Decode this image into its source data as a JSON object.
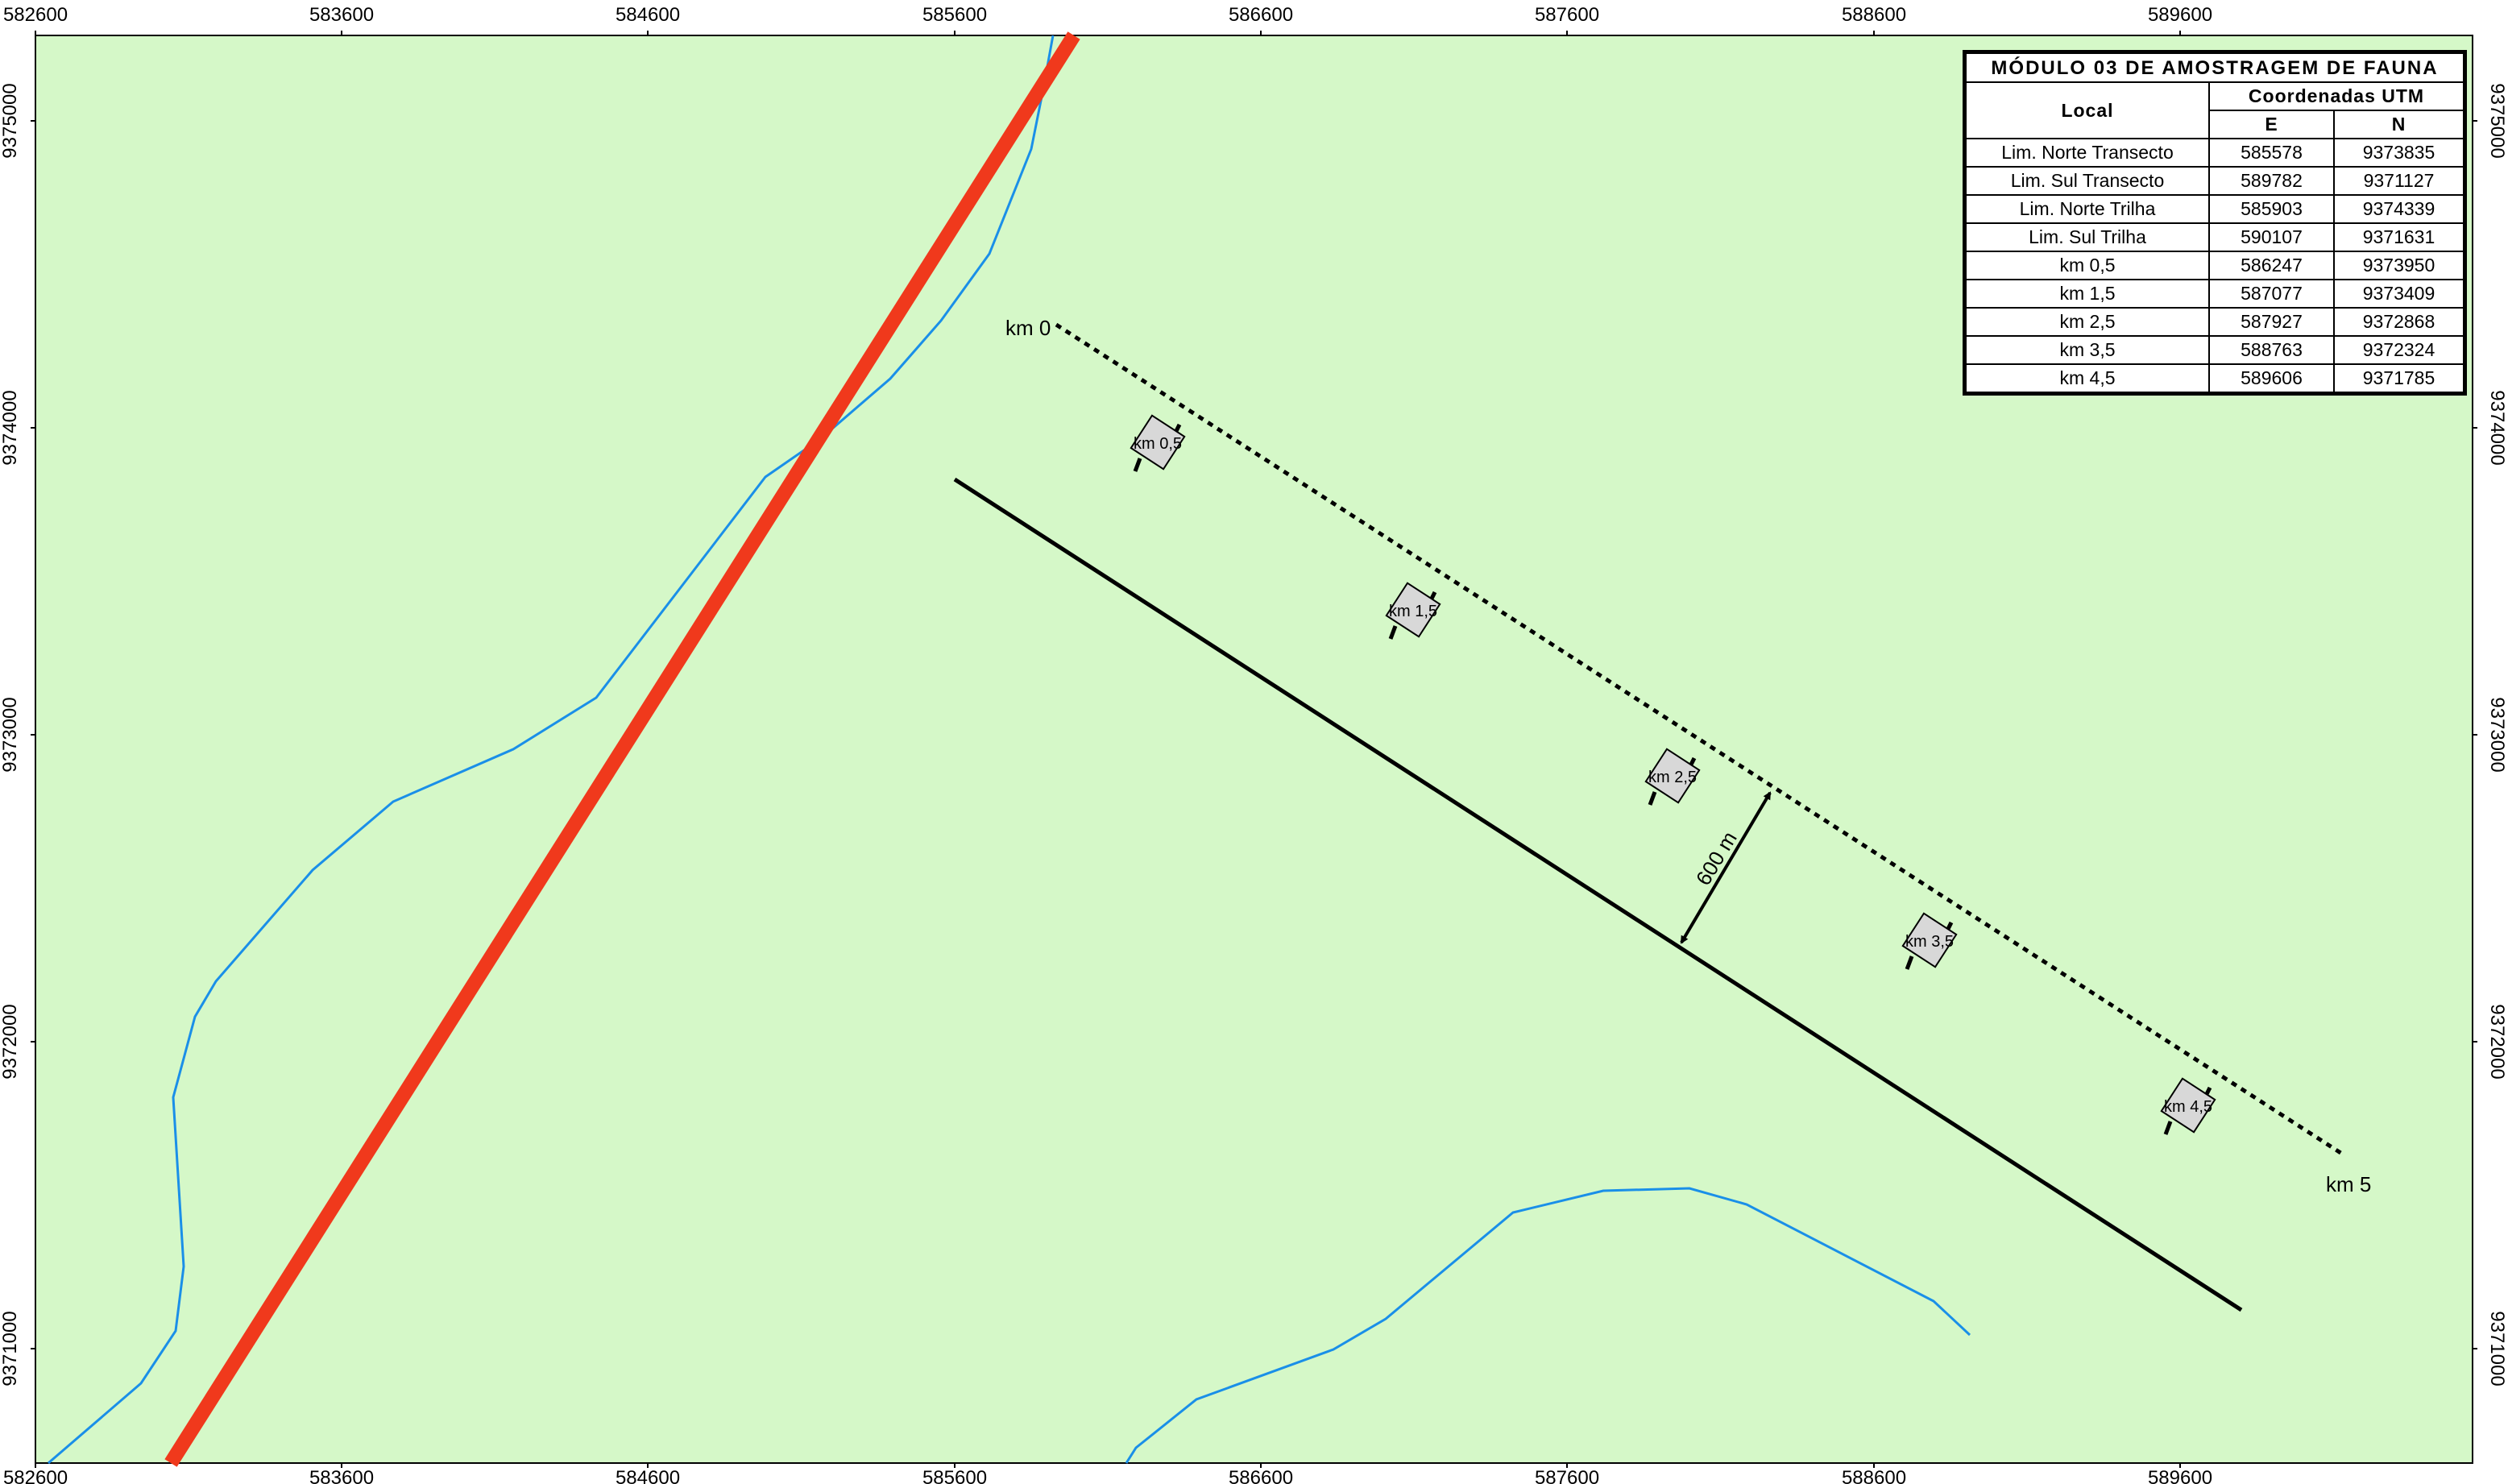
{
  "map": {
    "colors": {
      "background": "#d5f8c8",
      "river": "#1a8fe8",
      "highway": "#f0391c",
      "transect": "#000000",
      "trail": "#000000",
      "marker_fill": "#d8d8d8"
    },
    "x_ticks": [
      "582600",
      "583600",
      "584600",
      "585600",
      "586600",
      "587600",
      "588600",
      "589600"
    ],
    "y_ticks": [
      "9375000",
      "9374000",
      "9373000",
      "9372000",
      "9371000"
    ],
    "trail_labels": {
      "start": "km 0",
      "end": "km 5"
    },
    "markers": [
      "km 0,5",
      "km 1,5",
      "km 2,5",
      "km 3,5",
      "km 4,5"
    ],
    "distance_label": "600 m"
  },
  "legend": {
    "title": "MÓDULO 03 DE AMOSTRAGEM DE FAUNA",
    "local_header": "Local",
    "coord_header": "Coordenadas UTM",
    "e_header": "E",
    "n_header": "N",
    "rows": [
      {
        "local": "Lim. Norte Transecto",
        "e": "585578",
        "n": "9373835"
      },
      {
        "local": "Lim. Sul Transecto",
        "e": "589782",
        "n": "9371127"
      },
      {
        "local": "Lim. Norte Trilha",
        "e": "585903",
        "n": "9374339"
      },
      {
        "local": "Lim. Sul Trilha",
        "e": "590107",
        "n": "9371631"
      },
      {
        "local": "km 0,5",
        "e": "586247",
        "n": "9373950"
      },
      {
        "local": "km 1,5",
        "e": "587077",
        "n": "9373409"
      },
      {
        "local": "km 2,5",
        "e": "587927",
        "n": "9372868"
      },
      {
        "local": "km 3,5",
        "e": "588763",
        "n": "9372324"
      },
      {
        "local": "km 4,5",
        "e": "589606",
        "n": "9371785"
      }
    ]
  }
}
